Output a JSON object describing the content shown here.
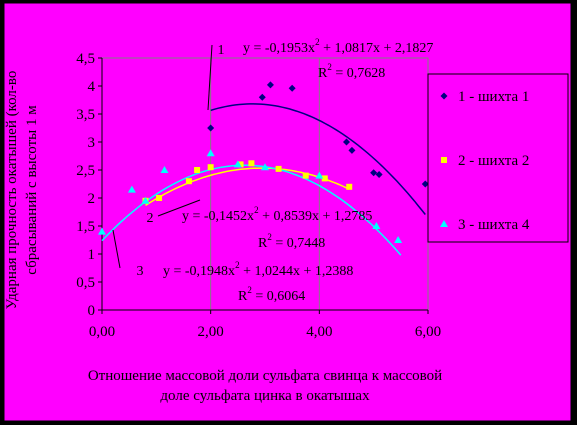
{
  "chart_data": {
    "type": "scatter",
    "xlabel": [
      "Отношение массовой доли сульфата свинца к массовой",
      "доле сульфата цинка в окатышах"
    ],
    "ylabel": [
      "Ударная прочность окатышей (кол-во",
      "сбрасываний с высоты 1 м"
    ],
    "xlim": [
      0,
      6
    ],
    "ylim": [
      0,
      4.5
    ],
    "x_ticks": [
      "0,00",
      "2,00",
      "4,00",
      "6,00"
    ],
    "y_ticks": [
      "0",
      "0,5",
      "1",
      "1,5",
      "2",
      "2,5",
      "3",
      "3,5",
      "4",
      "4,5"
    ],
    "grid": "vertical",
    "legend_position": "right",
    "colors": {
      "background": "#ff00ff",
      "plot_area": "#ff00ff",
      "series1": "#000080",
      "series2": "#ffff00",
      "series3": "#00ffff",
      "grid": "#808080"
    },
    "series": [
      {
        "name": "1 - шихта 1",
        "x": [
          2.0,
          2.95,
          3.1,
          3.5,
          4.5,
          4.6,
          5.0,
          5.1,
          5.95
        ],
        "y": [
          3.25,
          3.8,
          4.02,
          3.96,
          3.0,
          2.85,
          2.45,
          2.42,
          2.25
        ],
        "trendline": {
          "a": -0.1953,
          "b": 1.0817,
          "c": 2.1827,
          "xmin": 2.0,
          "xmax": 5.95
        },
        "equation_label": "1",
        "equation": "y = -0,1953x",
        "equation_rest": " + 1,0817x + 2,1827",
        "r2_label": "R",
        "r2_value": " = 0,7628"
      },
      {
        "name": "2 - шихта 2",
        "x": [
          0.8,
          1.05,
          1.6,
          1.75,
          2.0,
          2.55,
          2.75,
          3.25,
          3.75,
          4.1,
          4.55
        ],
        "y": [
          1.95,
          2.0,
          2.3,
          2.5,
          2.55,
          2.6,
          2.62,
          2.52,
          2.4,
          2.35,
          2.2
        ],
        "trendline": {
          "a": -0.1452,
          "b": 0.8539,
          "c": 1.2785,
          "xmin": 0.8,
          "xmax": 4.55
        },
        "equation_label": "2",
        "equation": "y = -0,1452x",
        "equation_rest": " + 0,8539x + 1,2785",
        "r2_label": "R",
        "r2_value": " = 0,7448"
      },
      {
        "name": "3 - шихта 4",
        "x": [
          0.0,
          0.55,
          0.8,
          1.15,
          2.0,
          2.5,
          3.0,
          4.0,
          5.05,
          5.45
        ],
        "y": [
          1.4,
          2.15,
          1.95,
          2.5,
          2.8,
          2.6,
          2.55,
          2.4,
          1.5,
          1.25
        ],
        "trendline": {
          "a": -0.1948,
          "b": 1.0244,
          "c": 1.2388,
          "xmin": 0.0,
          "xmax": 5.5
        },
        "equation_label": "3",
        "equation": "y = -0,1948x",
        "equation_rest": " + 1,0244x + 1,2388",
        "r2_label": "R",
        "r2_value": " = 0,6064"
      }
    ]
  }
}
